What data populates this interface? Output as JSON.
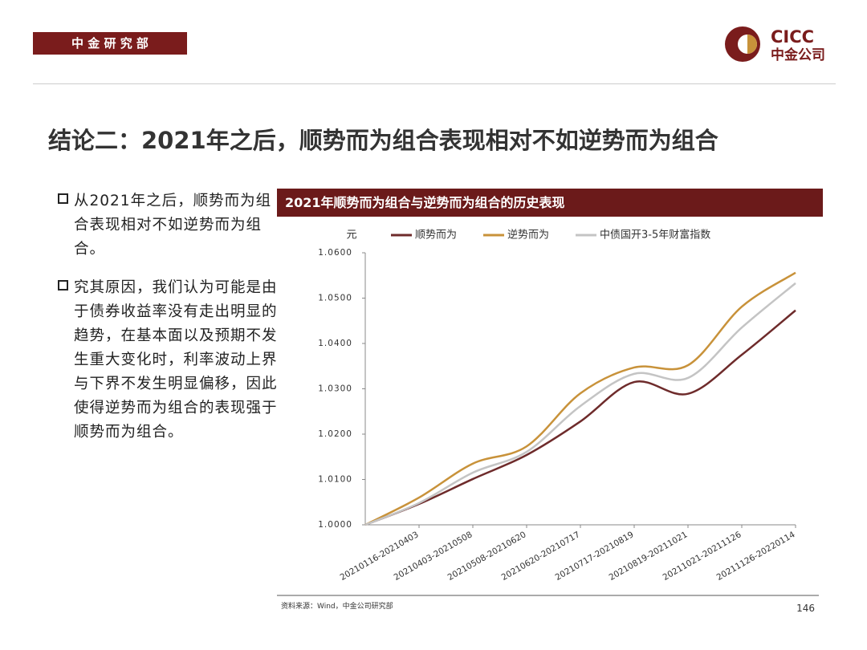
{
  "header": {
    "department": "中 金 研 究 部",
    "logo_en": "CICC",
    "logo_cn": "中金公司"
  },
  "title": "结论二：2021年之后，顺势而为组合表现相对不如逆势而为组合",
  "bullets": [
    "从2021年之后，顺势而为组合表现相对不如逆势而为组合。",
    "究其原因，我们认为可能是由于债券收益率没有走出明显的趋势，在基本面以及预期不发生重大变化时，利率波动上界与下界不发生明显偏移，因此使得逆势而为组合的表现强于顺势而为组合。"
  ],
  "chart_data": {
    "type": "line",
    "title": "2021年顺势而为组合与逆势而为组合的历史表现",
    "y_unit": "元",
    "categories": [
      null,
      "20210116-20210403",
      "20210403-20210508",
      "20210508-20210620",
      "20210620-20210717",
      "20210717-20210819",
      "20210819-20211021",
      "20211021-20211126",
      "20211126-20220114"
    ],
    "series": [
      {
        "name": "顺势而为",
        "color": "#6e2b2b",
        "values": [
          1.0,
          1.0046,
          1.0101,
          1.0154,
          1.0228,
          1.0315,
          1.0289,
          1.0375,
          1.0473
        ]
      },
      {
        "name": "逆势而为",
        "color": "#c8923a",
        "values": [
          1.0,
          1.006,
          1.0135,
          1.0173,
          1.029,
          1.0347,
          1.0352,
          1.0481,
          1.0556
        ]
      },
      {
        "name": "中债国开3-5年财富指数",
        "color": "#c4c4c4",
        "values": [
          1.0,
          1.0048,
          1.0115,
          1.0161,
          1.0262,
          1.0333,
          1.0324,
          1.0435,
          1.0533
        ]
      }
    ],
    "ylim": [
      1.0,
      1.06
    ],
    "yticks": [
      {
        "value": 1.0,
        "label": "1.0000"
      },
      {
        "value": 1.01,
        "label": "1.0100"
      },
      {
        "value": 1.02,
        "label": "1.0200"
      },
      {
        "value": 1.03,
        "label": "1.0300"
      },
      {
        "value": 1.04,
        "label": "1.0400"
      },
      {
        "value": 1.05,
        "label": "1.0500"
      },
      {
        "value": 1.06,
        "label": "1.0600"
      }
    ]
  },
  "footer": {
    "source": "资料来源：Wind，中金公司研究部",
    "page": "146"
  }
}
